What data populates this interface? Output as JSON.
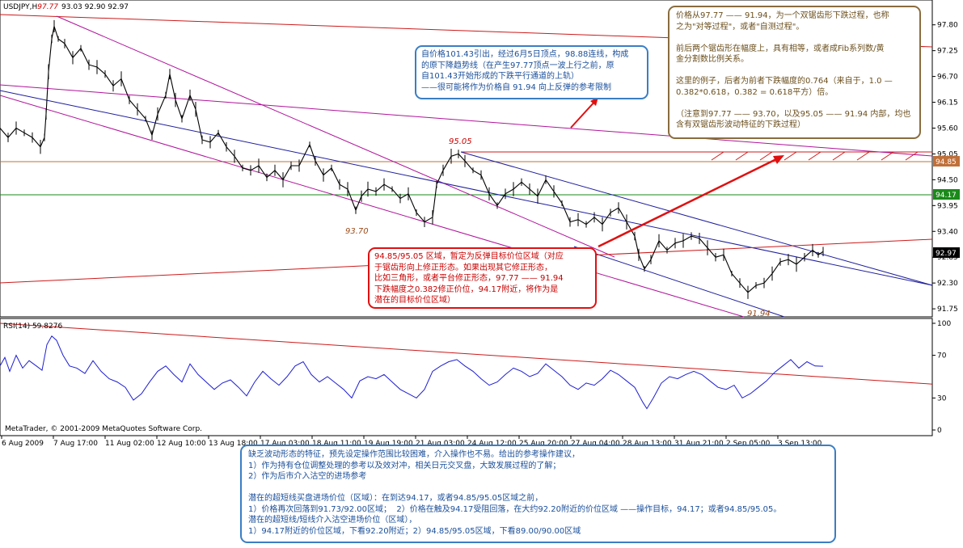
{
  "chart_header": {
    "symbol": "USDJPY,H",
    "current": "97.77",
    "ohlc": "93.03 92.90 92.97"
  },
  "chart_data": [
    {
      "type": "candlestick",
      "title": "USDJPY,H97.77 93.03 92.90 92.97",
      "ylim": [
        91.7,
        97.95
      ],
      "y_ticks": [
        "97.80",
        "97.25",
        "96.70",
        "96.15",
        "95.60",
        "95.05",
        "94.50",
        "93.95",
        "93.40",
        "92.85",
        "92.30",
        "91.75"
      ],
      "x_ticks": [
        "6 Aug 2009",
        "7 Aug 17:00",
        "11 Aug 02:00",
        "12 Aug 10:00",
        "13 Aug 18:00",
        "17 Aug 03:00",
        "18 Aug 11:00",
        "19 Aug 19:00",
        "21 Aug 03:00",
        "24 Aug 12:00",
        "25 Aug 20:00",
        "27 Aug 04:00",
        "28 Aug 13:00",
        "31 Aug 21:00",
        "2 Sep 05:00",
        "3 Sep 13:00"
      ],
      "price_points": [
        [
          0,
          95.6
        ],
        [
          10,
          95.4
        ],
        [
          20,
          95.6
        ],
        [
          30,
          95.5
        ],
        [
          40,
          95.4
        ],
        [
          50,
          95.2
        ],
        [
          55,
          95.4
        ],
        [
          57,
          95.9
        ],
        [
          60,
          96.8
        ],
        [
          64,
          97.5
        ],
        [
          67,
          97.77
        ],
        [
          72,
          97.5
        ],
        [
          80,
          97.4
        ],
        [
          90,
          97.1
        ],
        [
          100,
          97.3
        ],
        [
          110,
          96.95
        ],
        [
          120,
          96.9
        ],
        [
          130,
          96.75
        ],
        [
          140,
          96.5
        ],
        [
          150,
          96.65
        ],
        [
          160,
          96.2
        ],
        [
          170,
          96.0
        ],
        [
          180,
          95.8
        ],
        [
          188,
          95.45
        ],
        [
          195,
          95.9
        ],
        [
          205,
          96.3
        ],
        [
          210,
          96.75
        ],
        [
          217,
          96.2
        ],
        [
          225,
          95.8
        ],
        [
          235,
          96.3
        ],
        [
          242,
          96.0
        ],
        [
          250,
          95.35
        ],
        [
          260,
          95.3
        ],
        [
          270,
          95.5
        ],
        [
          280,
          95.2
        ],
        [
          290,
          95.0
        ],
        [
          300,
          94.75
        ],
        [
          310,
          94.7
        ],
        [
          320,
          94.8
        ],
        [
          330,
          94.55
        ],
        [
          340,
          94.7
        ],
        [
          350,
          94.5
        ],
        [
          360,
          94.8
        ],
        [
          370,
          94.8
        ],
        [
          383,
          95.25
        ],
        [
          390,
          94.9
        ],
        [
          400,
          94.6
        ],
        [
          410,
          94.75
        ],
        [
          420,
          94.4
        ],
        [
          430,
          94.3
        ],
        [
          440,
          93.85
        ],
        [
          447,
          94.15
        ],
        [
          455,
          94.3
        ],
        [
          465,
          94.25
        ],
        [
          475,
          94.4
        ],
        [
          485,
          94.3
        ],
        [
          495,
          94.1
        ],
        [
          505,
          94.2
        ],
        [
          515,
          93.8
        ],
        [
          525,
          93.6
        ],
        [
          535,
          93.7
        ],
        [
          540,
          94.4
        ],
        [
          548,
          94.7
        ],
        [
          558,
          95.0
        ],
        [
          567,
          95.05
        ],
        [
          575,
          94.9
        ],
        [
          585,
          94.7
        ],
        [
          595,
          94.6
        ],
        [
          605,
          94.2
        ],
        [
          615,
          93.95
        ],
        [
          625,
          94.2
        ],
        [
          635,
          94.3
        ],
        [
          645,
          94.45
        ],
        [
          655,
          94.3
        ],
        [
          665,
          94.15
        ],
        [
          675,
          94.5
        ],
        [
          685,
          94.25
        ],
        [
          695,
          94.0
        ],
        [
          705,
          93.6
        ],
        [
          715,
          93.65
        ],
        [
          725,
          93.55
        ],
        [
          735,
          93.7
        ],
        [
          745,
          93.55
        ],
        [
          755,
          93.8
        ],
        [
          765,
          93.9
        ],
        [
          775,
          93.6
        ],
        [
          785,
          93.3
        ],
        [
          790,
          92.9
        ],
        [
          797,
          92.6
        ],
        [
          805,
          92.8
        ],
        [
          815,
          93.2
        ],
        [
          825,
          93.0
        ],
        [
          835,
          93.15
        ],
        [
          845,
          93.2
        ],
        [
          855,
          93.3
        ],
        [
          865,
          93.25
        ],
        [
          875,
          93.05
        ],
        [
          885,
          92.85
        ],
        [
          895,
          92.9
        ],
        [
          905,
          92.5
        ],
        [
          915,
          92.3
        ],
        [
          925,
          92.1
        ],
        [
          935,
          92.25
        ],
        [
          945,
          92.3
        ],
        [
          955,
          92.5
        ],
        [
          965,
          92.75
        ],
        [
          975,
          92.8
        ],
        [
          985,
          92.7
        ],
        [
          995,
          92.85
        ],
        [
          1005,
          93.0
        ],
        [
          1012,
          92.9
        ],
        [
          1018,
          92.97
        ]
      ],
      "key_levels": [
        {
          "label": "94.85",
          "value": 94.85,
          "color": "#c0703a"
        },
        {
          "label": "94.17",
          "value": 94.17,
          "color": "#1a8a1a"
        },
        {
          "label": "92.97",
          "value": 92.97,
          "color": "#000000"
        }
      ],
      "price_annotations": [
        {
          "text": "95.05",
          "value": 95.05,
          "color": "#cc0000"
        },
        {
          "text": "93.70",
          "value": 93.7,
          "color": "#9a4b1a"
        },
        {
          "text": "91.94",
          "value": 91.94,
          "color": "#9a4b1a"
        }
      ]
    },
    {
      "type": "line",
      "title": "RSI(14) 59.8276",
      "ylim": [
        0,
        100
      ],
      "y_ticks": [
        "100",
        "70",
        "30",
        "0"
      ],
      "points": [
        [
          0,
          60
        ],
        [
          6,
          68
        ],
        [
          12,
          55
        ],
        [
          20,
          70
        ],
        [
          28,
          58
        ],
        [
          36,
          65
        ],
        [
          45,
          60
        ],
        [
          52,
          56
        ],
        [
          58,
          80
        ],
        [
          64,
          88
        ],
        [
          70,
          84
        ],
        [
          78,
          70
        ],
        [
          86,
          60
        ],
        [
          95,
          58
        ],
        [
          105,
          53
        ],
        [
          115,
          65
        ],
        [
          125,
          55
        ],
        [
          135,
          48
        ],
        [
          145,
          45
        ],
        [
          155,
          40
        ],
        [
          165,
          28
        ],
        [
          175,
          34
        ],
        [
          185,
          45
        ],
        [
          195,
          55
        ],
        [
          205,
          60
        ],
        [
          215,
          52
        ],
        [
          225,
          45
        ],
        [
          235,
          62
        ],
        [
          245,
          52
        ],
        [
          255,
          45
        ],
        [
          265,
          38
        ],
        [
          275,
          44
        ],
        [
          285,
          47
        ],
        [
          295,
          40
        ],
        [
          305,
          32
        ],
        [
          315,
          45
        ],
        [
          325,
          55
        ],
        [
          335,
          48
        ],
        [
          345,
          42
        ],
        [
          355,
          50
        ],
        [
          365,
          60
        ],
        [
          375,
          64
        ],
        [
          385,
          52
        ],
        [
          395,
          45
        ],
        [
          405,
          50
        ],
        [
          415,
          44
        ],
        [
          425,
          38
        ],
        [
          435,
          30
        ],
        [
          445,
          46
        ],
        [
          455,
          50
        ],
        [
          465,
          48
        ],
        [
          475,
          52
        ],
        [
          485,
          45
        ],
        [
          495,
          38
        ],
        [
          505,
          34
        ],
        [
          515,
          30
        ],
        [
          525,
          38
        ],
        [
          535,
          55
        ],
        [
          545,
          60
        ],
        [
          555,
          64
        ],
        [
          565,
          66
        ],
        [
          575,
          60
        ],
        [
          585,
          55
        ],
        [
          595,
          48
        ],
        [
          605,
          42
        ],
        [
          615,
          45
        ],
        [
          625,
          52
        ],
        [
          635,
          58
        ],
        [
          645,
          55
        ],
        [
          655,
          50
        ],
        [
          665,
          53
        ],
        [
          675,
          62
        ],
        [
          685,
          56
        ],
        [
          695,
          50
        ],
        [
          705,
          42
        ],
        [
          715,
          38
        ],
        [
          725,
          44
        ],
        [
          735,
          42
        ],
        [
          745,
          48
        ],
        [
          755,
          56
        ],
        [
          765,
          52
        ],
        [
          775,
          46
        ],
        [
          785,
          40
        ],
        [
          795,
          26
        ],
        [
          800,
          20
        ],
        [
          808,
          30
        ],
        [
          818,
          44
        ],
        [
          828,
          50
        ],
        [
          838,
          48
        ],
        [
          848,
          52
        ],
        [
          858,
          55
        ],
        [
          868,
          52
        ],
        [
          878,
          46
        ],
        [
          888,
          40
        ],
        [
          898,
          38
        ],
        [
          908,
          42
        ],
        [
          918,
          30
        ],
        [
          928,
          34
        ],
        [
          938,
          40
        ],
        [
          948,
          46
        ],
        [
          958,
          54
        ],
        [
          968,
          60
        ],
        [
          978,
          66
        ],
        [
          988,
          58
        ],
        [
          998,
          64
        ],
        [
          1008,
          60
        ],
        [
          1018,
          59.8
        ]
      ],
      "trendline": {
        "from": [
          0,
          100
        ],
        "to": [
          1153,
          43
        ]
      }
    }
  ],
  "annotations": {
    "topleft": "自价格101.43引出，经过6月5日顶点，98.88连线，构成\n的原下降趋势线（在产生97.77顶点一波上行之前，原\n自101.43开始形成的下跌平行通道的上轨）\n——很可能将作为价格自 91.94 向上反弹的参考限制",
    "mid": "94.85/95.05 区域，暂定为反弹目标价位区域（对应\n于锯齿形向上修正形态。如果出现其它修正形态，\n比如三角形，或者平台修正形态，97.77 —— 91.94\n下跌幅度之0.382修正价位，94.17附近，将作为是\n潜在的目标价位区域）",
    "right": "价格从97.77 —— 91.94，为一个双锯齿形下跌过程，也称\n之为\"对等过程\"，或者\"自测过程\"。\n\n前后两个锯齿形在幅度上，具有相等，或者成Fib系列数/黄\n金分割数比例关系。\n\n这里的例子，后者为前者下跌幅度的0.764（来自于，1.0 —\n0.382*0.618，0.382 = 0.618平方）倍。\n\n（注意到97.77 —— 93.70，以及95.05 —— 91.94 内部，均也\n含有双锯齿形波动特征的下跌过程）",
    "bottom": "缺乏波动形态的特征，预先设定操作范围比较困难，介入操作也不易。给出的参考操作建议，\n1）作为持有仓位调整处理的参考以及效对冲，相关日元交叉盘，大致发展过程的了解；\n2）作为后市介入沽空的进场参考\n\n潜在的超短线买盘进场价位（区域）：在到达94.17，或者94.85/95.05区域之前，\n1）价格再次回落到91.73/92.00区域；  2）价格在触及94.17受阻回落，在大约92.20附近的价位区域 ——操作目标，94.17；或者94.85/95.05。\n潜在的超短线/短线介入沽空进场价位（区域），\n1）94.17附近的价位区域，下看92.20附近；2）94.85/95.05区域，下看89.00/90.00区域"
  },
  "rsi_label": "RSI(14) 59.8276",
  "copyright": "MetaTrader, © 2001-2009 MetaQuotes Software Corp.",
  "colors": {
    "candle": "#000000",
    "rsi_line": "#1e1ed2",
    "channel_magenta": "#b0149a",
    "channel_blue": "#1e1e9c",
    "resistance_red": "#cc1a1a",
    "arrow_red": "#e01010"
  }
}
